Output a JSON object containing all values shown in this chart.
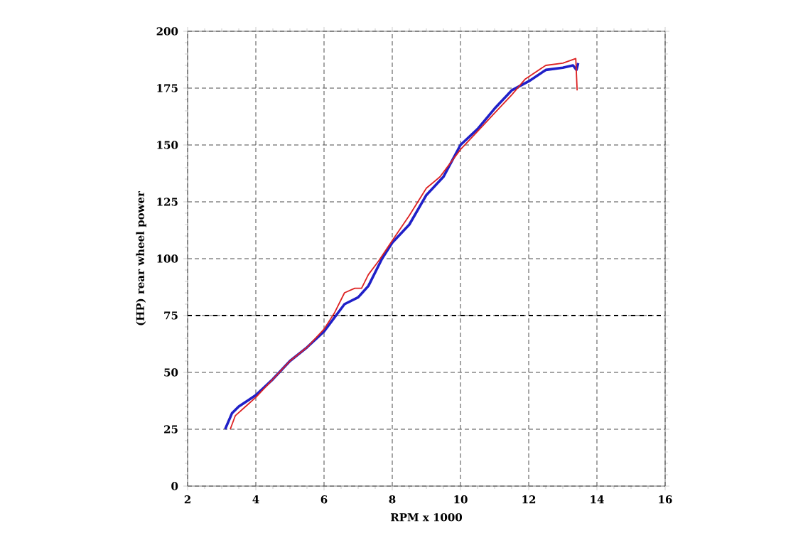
{
  "chart_data": {
    "type": "line",
    "xlabel": "RPM x 1000",
    "ylabel": "(HP) rear wheel power",
    "xlim": [
      2,
      16
    ],
    "xticks": [
      2,
      4,
      6,
      8,
      10,
      12,
      14,
      16
    ],
    "ylim": [
      0,
      200
    ],
    "yticks": [
      0,
      25,
      50,
      75,
      100,
      125,
      150,
      175,
      200
    ],
    "grid": true,
    "marker": "none",
    "line_style": "solid",
    "ref_lines": [
      {
        "axis": "y",
        "value": 75,
        "line_style": "dashed",
        "color": "#000000"
      }
    ],
    "series": [
      {
        "color": "#2020c8",
        "x": [
          3.1,
          3.3,
          3.5,
          3.8,
          4,
          4.5,
          5,
          5.5,
          6,
          6.6,
          7,
          7.3,
          7.7,
          8,
          8.5,
          9,
          9.5,
          10,
          10.5,
          11,
          11.5,
          12,
          12.5,
          13,
          13.3,
          13.4,
          13.45
        ],
        "values": [
          25,
          32,
          35,
          38,
          40,
          47,
          55,
          61,
          68,
          80,
          83,
          88,
          100,
          107,
          115,
          128,
          136,
          150,
          157,
          166,
          174,
          178,
          183,
          184,
          185,
          183,
          186
        ]
      },
      {
        "color": "#dd2222",
        "x": [
          3.25,
          3.4,
          3.7,
          4,
          4.5,
          5,
          5.5,
          6,
          6.3,
          6.6,
          6.9,
          7.1,
          7.3,
          7.6,
          8,
          8.5,
          9,
          9.4,
          10,
          10.5,
          11,
          11.5,
          11.9,
          12.5,
          13,
          13.38,
          13.42
        ],
        "values": [
          25,
          31,
          35,
          39,
          47,
          55,
          61,
          69,
          76,
          85,
          87,
          87,
          93,
          99,
          108,
          119,
          131,
          136,
          148,
          156,
          164,
          172,
          179,
          185,
          186,
          188,
          174
        ]
      }
    ]
  }
}
